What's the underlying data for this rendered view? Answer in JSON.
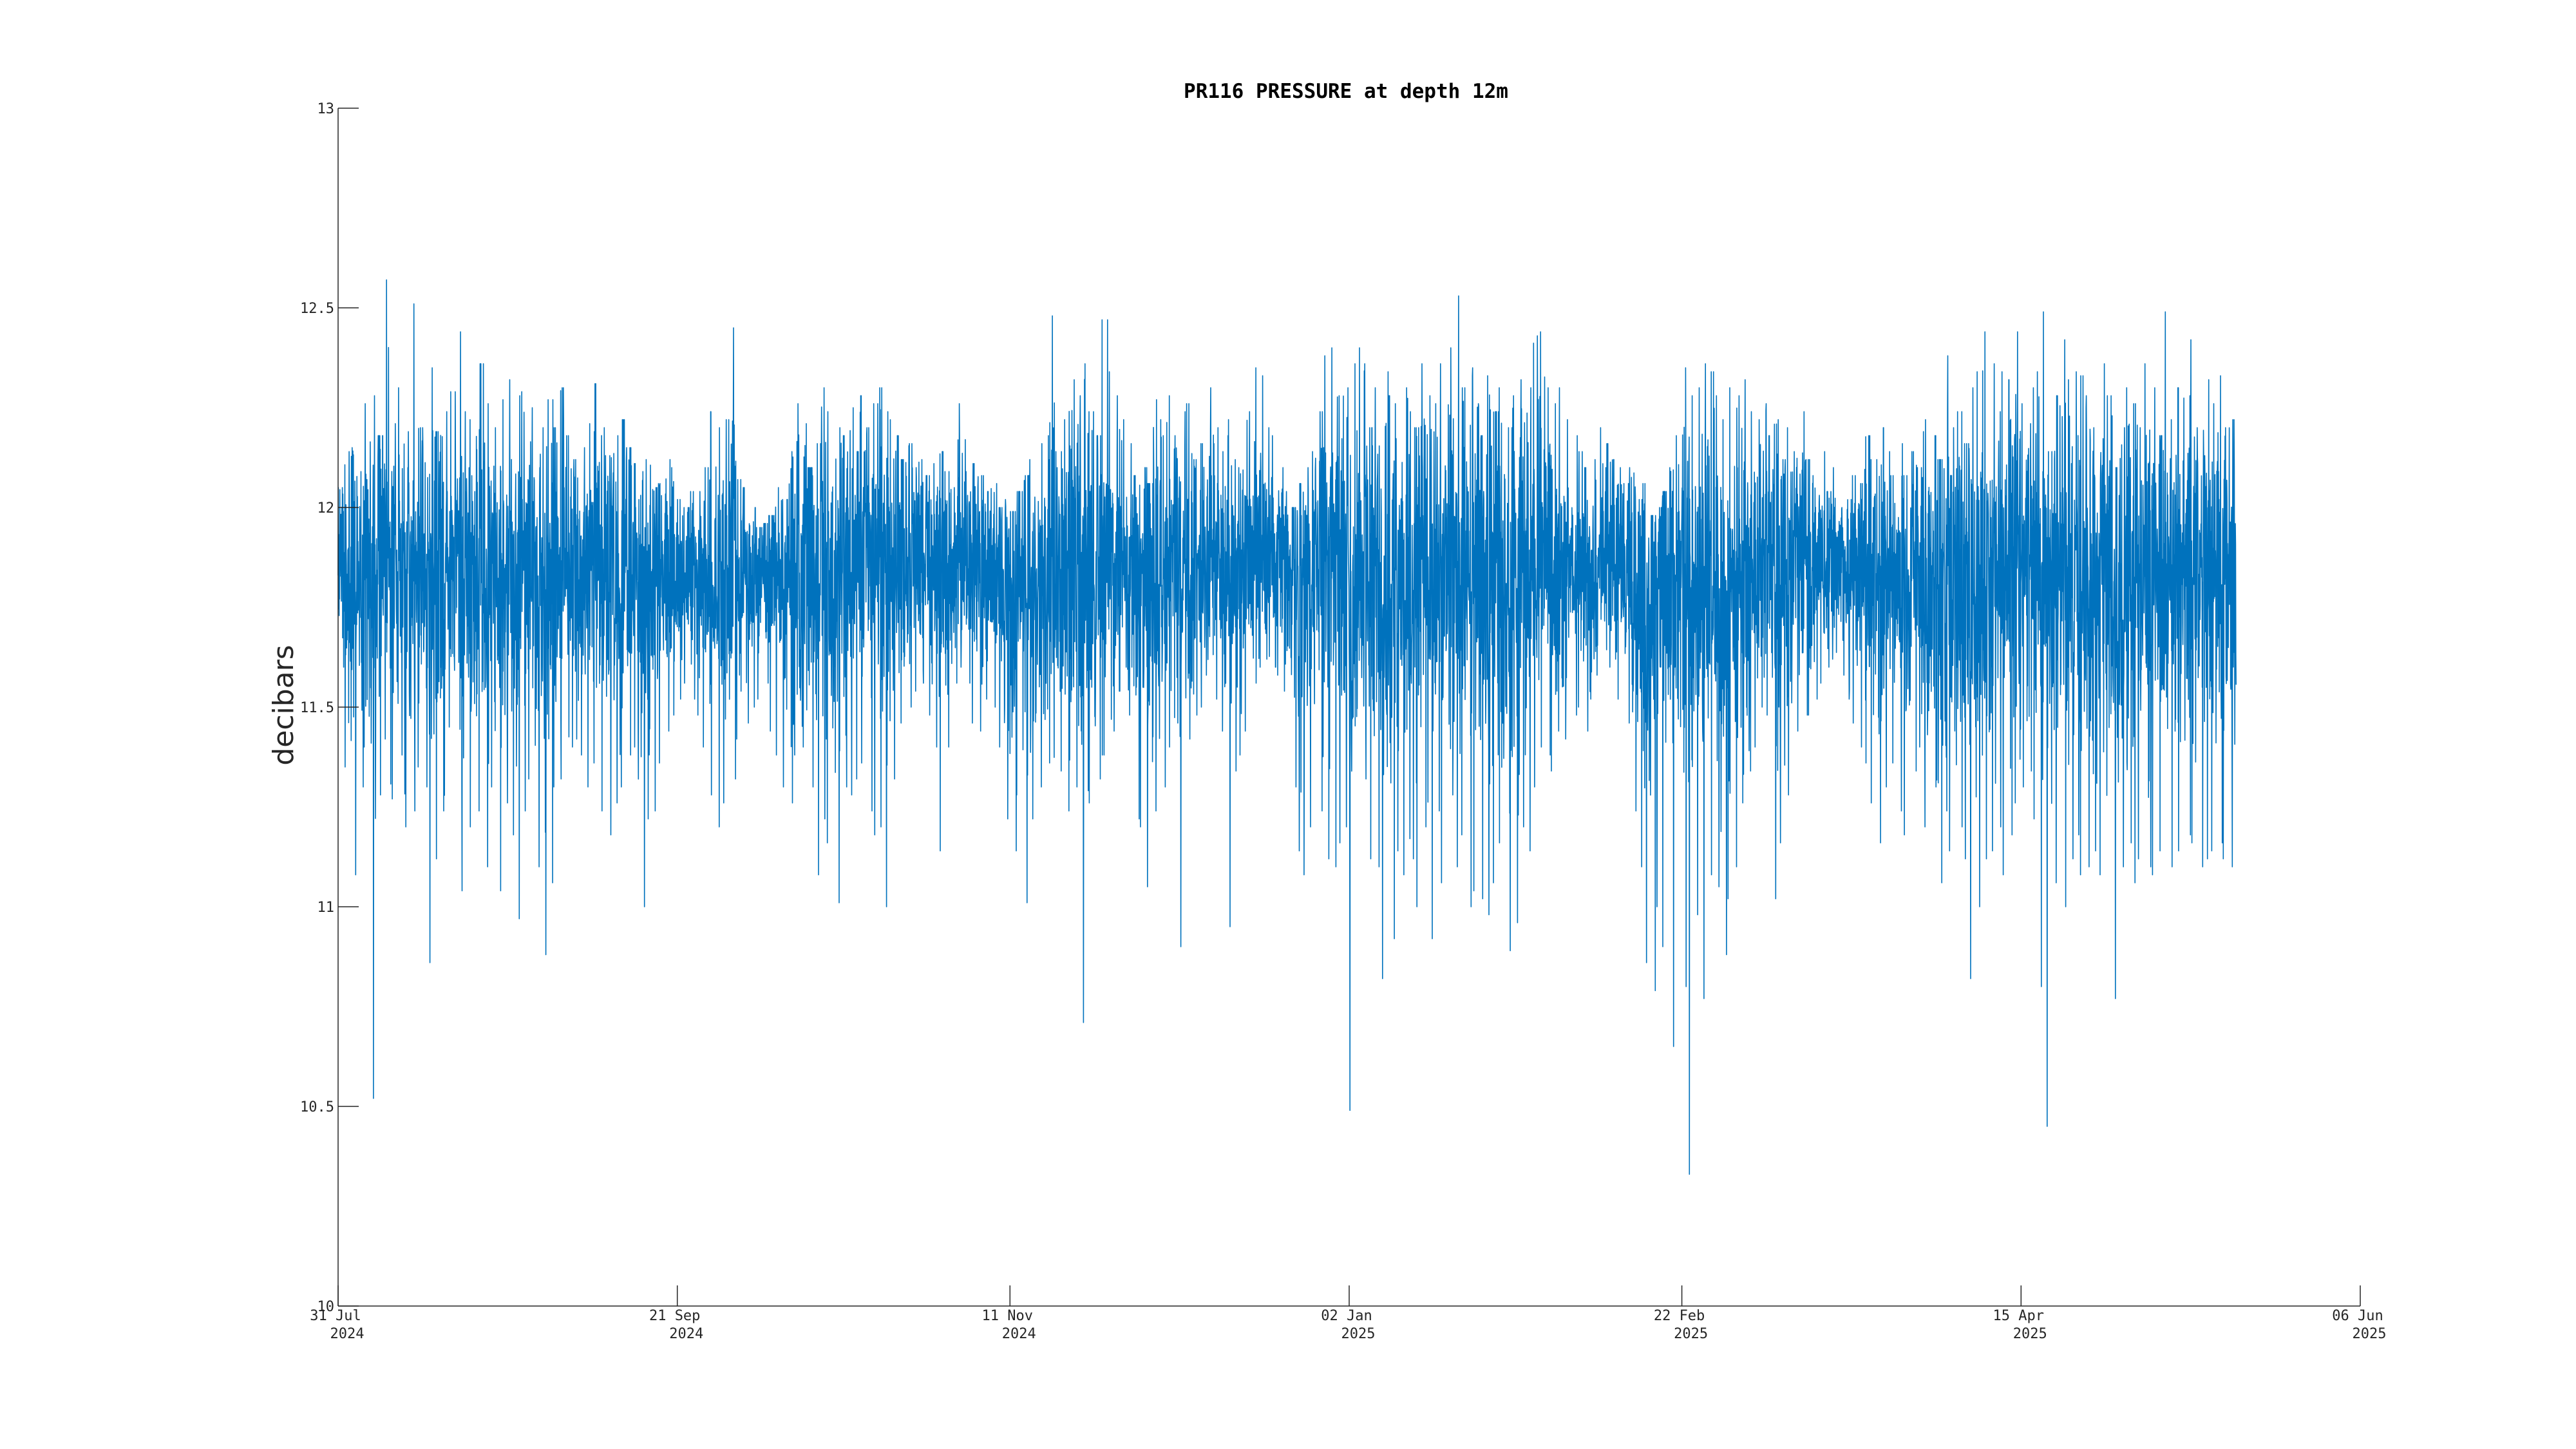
{
  "chart_data": {
    "type": "line",
    "title": "PR116 PRESSURE at depth 12m",
    "ylabel": "decibars",
    "xlabel": "",
    "xlim": [
      "2024-07-31",
      "2025-06-06"
    ],
    "ylim": [
      10,
      13
    ],
    "y_ticks": [
      10,
      10.5,
      11,
      11.5,
      12,
      12.5,
      13
    ],
    "y_tick_labels": [
      "10",
      "10.5",
      "11",
      "11.5",
      "12",
      "12.5",
      "13"
    ],
    "x_ticks": [
      "2024-07-31",
      "2024-09-21",
      "2024-11-11",
      "2025-01-02",
      "2025-02-22",
      "2025-04-15",
      "2025-06-06"
    ],
    "x_tick_labels": [
      {
        "day": "31 Jul",
        "year": "2024"
      },
      {
        "day": "21 Sep",
        "year": "2024"
      },
      {
        "day": "11 Nov",
        "year": "2024"
      },
      {
        "day": "02 Jan",
        "year": "2025"
      },
      {
        "day": "22 Feb",
        "year": "2025"
      },
      {
        "day": "15 Apr",
        "year": "2025"
      },
      {
        "day": "06 Jun",
        "year": "2025"
      }
    ],
    "grid": false,
    "series": [
      {
        "color": "#0072bd",
        "x": [
          "2024-07-31",
          "2024-08-01",
          "2024-08-02",
          "2024-08-03",
          "2024-08-04",
          "2024-08-05",
          "2024-08-06",
          "2024-08-07",
          "2024-08-08",
          "2024-08-09",
          "2024-08-10",
          "2024-08-11",
          "2024-08-12",
          "2024-08-13",
          "2024-08-14",
          "2024-08-15",
          "2024-08-16",
          "2024-08-17",
          "2024-08-18",
          "2024-08-19",
          "2024-08-20",
          "2024-08-21",
          "2024-08-22",
          "2024-08-23",
          "2024-08-24",
          "2024-08-25",
          "2024-08-26",
          "2024-08-27",
          "2024-08-28",
          "2024-08-29",
          "2024-08-30",
          "2024-08-31",
          "2024-09-01",
          "2024-09-02",
          "2024-09-03",
          "2024-09-04",
          "2024-09-05",
          "2024-09-06",
          "2024-09-07",
          "2024-09-08",
          "2024-09-09",
          "2024-09-10",
          "2024-09-11",
          "2024-09-12",
          "2024-09-13",
          "2024-09-14",
          "2024-09-15",
          "2024-09-16",
          "2024-09-17",
          "2024-09-18",
          "2024-09-19",
          "2024-09-20",
          "2024-09-21",
          "2024-09-22",
          "2024-09-23",
          "2024-09-24",
          "2024-09-25",
          "2024-09-26",
          "2024-09-27",
          "2024-09-28",
          "2024-09-29",
          "2024-09-30",
          "2024-10-01",
          "2024-10-02",
          "2024-10-03",
          "2024-10-04",
          "2024-10-05",
          "2024-10-06",
          "2024-10-07",
          "2024-10-08",
          "2024-10-09",
          "2024-10-10",
          "2024-10-11",
          "2024-10-12",
          "2024-10-13",
          "2024-10-14",
          "2024-10-15",
          "2024-10-16",
          "2024-10-17",
          "2024-10-18",
          "2024-10-19",
          "2024-10-20",
          "2024-10-21",
          "2024-10-22",
          "2024-10-23",
          "2024-10-24",
          "2024-10-25",
          "2024-10-26",
          "2024-10-27",
          "2024-10-28",
          "2024-10-29",
          "2024-10-30",
          "2024-10-31",
          "2024-11-01",
          "2024-11-02",
          "2024-11-03",
          "2024-11-04",
          "2024-11-05",
          "2024-11-06",
          "2024-11-07",
          "2024-11-08",
          "2024-11-09",
          "2024-11-10",
          "2024-11-11",
          "2024-11-12",
          "2024-11-13",
          "2024-11-14",
          "2024-11-15",
          "2024-11-16",
          "2024-11-17",
          "2024-11-18",
          "2024-11-19",
          "2024-11-20",
          "2024-11-21",
          "2024-11-22",
          "2024-11-23",
          "2024-11-24",
          "2024-11-25",
          "2024-11-26",
          "2024-11-27",
          "2024-11-28",
          "2024-11-29",
          "2024-11-30",
          "2024-12-01",
          "2024-12-02",
          "2024-12-03",
          "2024-12-04",
          "2024-12-05",
          "2024-12-06",
          "2024-12-07",
          "2024-12-08",
          "2024-12-09",
          "2024-12-10",
          "2024-12-11",
          "2024-12-12",
          "2024-12-13",
          "2024-12-14",
          "2024-12-15",
          "2024-12-16",
          "2024-12-17",
          "2024-12-18",
          "2024-12-19",
          "2024-12-20",
          "2024-12-21",
          "2024-12-22",
          "2024-12-23",
          "2024-12-24",
          "2024-12-25",
          "2024-12-26",
          "2024-12-27",
          "2024-12-28",
          "2024-12-29",
          "2024-12-30",
          "2024-12-31",
          "2025-01-01",
          "2025-01-02",
          "2025-01-03",
          "2025-01-04",
          "2025-01-05",
          "2025-01-06",
          "2025-01-07",
          "2025-01-08",
          "2025-01-09",
          "2025-01-10",
          "2025-01-11",
          "2025-01-12",
          "2025-01-13",
          "2025-01-14",
          "2025-01-15",
          "2025-01-16",
          "2025-01-17",
          "2025-01-18",
          "2025-01-19",
          "2025-01-20",
          "2025-01-21",
          "2025-01-22",
          "2025-01-23",
          "2025-01-24",
          "2025-01-25",
          "2025-01-26",
          "2025-01-27",
          "2025-01-28",
          "2025-01-29",
          "2025-01-30",
          "2025-01-31",
          "2025-02-01",
          "2025-02-02",
          "2025-02-03",
          "2025-02-04",
          "2025-02-05",
          "2025-02-06",
          "2025-02-07",
          "2025-02-08",
          "2025-02-09",
          "2025-02-10",
          "2025-02-11",
          "2025-02-12",
          "2025-02-13",
          "2025-02-14",
          "2025-02-15",
          "2025-02-16",
          "2025-02-17",
          "2025-02-18",
          "2025-02-19",
          "2025-02-20",
          "2025-02-21",
          "2025-02-22",
          "2025-02-23",
          "2025-02-24",
          "2025-02-25",
          "2025-02-26",
          "2025-02-27",
          "2025-02-28",
          "2025-03-01",
          "2025-03-02",
          "2025-03-03",
          "2025-03-04",
          "2025-03-05",
          "2025-03-06",
          "2025-03-07",
          "2025-03-08",
          "2025-03-09",
          "2025-03-10",
          "2025-03-11",
          "2025-03-12",
          "2025-03-13",
          "2025-03-14",
          "2025-03-15",
          "2025-03-16",
          "2025-03-17",
          "2025-03-18",
          "2025-03-19",
          "2025-03-20",
          "2025-03-21",
          "2025-03-22",
          "2025-03-23",
          "2025-03-24",
          "2025-03-25",
          "2025-03-26",
          "2025-03-27",
          "2025-03-28",
          "2025-03-29",
          "2025-03-30",
          "2025-03-31",
          "2025-04-01",
          "2025-04-02",
          "2025-04-03",
          "2025-04-04",
          "2025-04-05",
          "2025-04-06",
          "2025-04-07",
          "2025-04-08",
          "2025-04-09",
          "2025-04-10",
          "2025-04-11",
          "2025-04-12",
          "2025-04-13",
          "2025-04-14",
          "2025-04-15",
          "2025-04-16",
          "2025-04-17",
          "2025-04-18",
          "2025-04-19",
          "2025-04-20",
          "2025-04-21",
          "2025-04-22",
          "2025-04-23",
          "2025-04-24",
          "2025-04-25",
          "2025-04-26",
          "2025-04-27",
          "2025-04-28",
          "2025-04-29",
          "2025-04-30",
          "2025-05-01",
          "2025-05-02",
          "2025-05-03",
          "2025-05-04",
          "2025-05-05",
          "2025-05-06",
          "2025-05-07",
          "2025-05-08",
          "2025-05-09",
          "2025-05-10",
          "2025-05-11",
          "2025-05-12",
          "2025-05-13",
          "2025-05-14",
          "2025-05-15",
          "2025-05-16",
          "2025-05-17",
          "2025-05-18",
          "2025-05-19",
          "2025-05-20",
          "2025-05-21",
          "2025-05-22",
          "2025-05-23",
          "2025-05-24",
          "2025-05-25",
          "2025-05-26",
          "2025-05-27",
          "2025-05-28",
          "2025-05-29",
          "2025-05-30",
          "2025-05-31",
          "2025-06-01",
          "2025-06-02",
          "2025-06-03",
          "2025-06-04",
          "2025-06-05",
          "2025-06-06"
        ],
        "y_max": [
          12.05,
          12.14,
          12.15,
          12.09,
          12.26,
          12.28,
          12.18,
          12.57,
          12.21,
          12.3,
          12.19,
          12.51,
          12.2,
          12.15,
          12.35,
          12.19,
          12.24,
          12.29,
          12.44,
          12.24,
          12.22,
          12.36,
          12.36,
          12.26,
          12.2,
          12.27,
          12.32,
          12.28,
          12.29,
          12.25,
          12.1,
          12.2,
          12.27,
          12.2,
          12.3,
          12.18,
          12.12,
          12.15,
          12.21,
          12.31,
          12.2,
          12.13,
          12.18,
          12.22,
          12.15,
          12.11,
          12.09,
          12.12,
          12.05,
          12.06,
          12.12,
          12.1,
          12.02,
          12.0,
          12.04,
          12.04,
          12.1,
          12.24,
          12.2,
          12.22,
          12.45,
          12.07,
          12.05,
          12.0,
          11.95,
          11.96,
          11.98,
          12.05,
          12.02,
          12.14,
          12.26,
          12.21,
          12.1,
          12.16,
          12.3,
          12.24,
          12.2,
          12.18,
          12.25,
          12.14,
          12.28,
          12.2,
          12.26,
          12.3,
          12.24,
          12.18,
          12.12,
          12.16,
          12.1,
          12.12,
          12.08,
          12.11,
          12.14,
          12.09,
          12.05,
          12.26,
          12.17,
          12.11,
          12.08,
          12.04,
          12.06,
          12.0,
          12.02,
          11.99,
          12.04,
          12.08,
          12.12,
          12.16,
          12.18,
          12.48,
          12.14,
          12.22,
          12.32,
          12.28,
          12.36,
          12.24,
          12.18,
          12.47,
          12.34,
          12.28,
          12.22,
          12.16,
          12.08,
          12.1,
          12.06,
          12.27,
          12.22,
          12.28,
          12.18,
          12.24,
          12.26,
          12.12,
          12.16,
          12.3,
          12.2,
          12.14,
          12.22,
          12.12,
          12.1,
          12.24,
          12.35,
          12.33,
          12.2,
          12.18,
          12.1,
          12.04,
          12.0,
          12.06,
          12.1,
          12.14,
          12.24,
          12.38,
          12.4,
          12.28,
          12.3,
          12.36,
          12.4,
          12.36,
          12.2,
          12.3,
          12.34,
          12.28,
          12.26,
          12.3,
          12.24,
          12.2,
          12.36,
          12.28,
          12.26,
          12.36,
          12.4,
          12.53,
          12.3,
          12.35,
          12.26,
          12.18,
          12.33,
          12.24,
          12.3,
          12.2,
          12.28,
          12.32,
          12.3,
          12.43,
          12.44,
          12.3,
          12.26,
          12.3,
          12.22,
          12.18,
          12.14,
          12.1,
          12.12,
          12.2,
          12.16,
          12.12,
          12.1,
          12.06,
          12.1,
          12.02,
          12.06,
          11.98,
          12.0,
          12.04,
          12.1,
          12.18,
          12.35,
          12.28,
          12.3,
          12.36,
          12.34,
          12.28,
          12.22,
          12.3,
          12.28,
          12.32,
          12.24,
          12.22,
          12.26,
          12.18,
          12.22,
          12.12,
          12.2,
          12.14,
          12.24,
          12.12,
          12.08,
          12.14,
          12.04,
          12.1,
          12.0,
          12.02,
          12.08,
          12.06,
          12.18,
          12.12,
          12.2,
          12.14,
          12.08,
          12.16,
          12.08,
          12.14,
          12.1,
          12.22,
          12.18,
          12.12,
          12.38,
          12.2,
          12.24,
          12.16,
          12.3,
          12.34,
          12.44,
          12.36,
          12.24,
          12.34,
          12.32,
          12.44,
          12.26,
          12.3,
          12.34,
          12.49,
          12.14,
          12.28,
          12.42,
          12.32,
          12.34,
          12.33,
          12.28,
          12.2,
          12.36,
          12.28,
          12.1,
          12.2,
          12.3,
          12.26,
          12.2,
          12.36,
          12.3,
          12.18,
          12.49,
          12.22,
          12.3,
          12.28,
          12.42,
          12.2,
          12.32,
          12.26,
          12.33,
          12.2,
          12.22
        ],
        "y_min": [
          11.6,
          11.35,
          11.08,
          11.3,
          11.4,
          10.52,
          11.28,
          11.42,
          11.27,
          11.38,
          11.2,
          11.24,
          11.35,
          11.3,
          10.86,
          11.12,
          11.24,
          11.45,
          11.3,
          11.04,
          11.2,
          11.24,
          11.1,
          11.3,
          11.04,
          11.26,
          11.18,
          10.97,
          11.24,
          11.32,
          11.1,
          10.88,
          11.06,
          11.3,
          11.32,
          11.4,
          11.42,
          11.38,
          11.3,
          11.36,
          11.24,
          11.18,
          11.26,
          11.3,
          11.38,
          11.4,
          11.0,
          11.22,
          11.24,
          11.36,
          11.44,
          11.48,
          11.52,
          11.56,
          11.52,
          11.48,
          11.4,
          11.28,
          11.2,
          11.26,
          11.32,
          11.42,
          11.46,
          11.5,
          11.52,
          11.56,
          11.44,
          11.38,
          11.3,
          11.26,
          11.38,
          11.4,
          11.3,
          11.08,
          11.22,
          11.16,
          11.01,
          11.3,
          11.28,
          11.32,
          11.36,
          11.24,
          11.18,
          11.2,
          11.0,
          11.32,
          11.46,
          11.5,
          11.54,
          11.56,
          11.48,
          11.4,
          11.14,
          11.4,
          11.56,
          11.6,
          11.56,
          11.46,
          11.44,
          11.52,
          11.5,
          11.4,
          11.22,
          11.14,
          11.28,
          11.01,
          11.22,
          11.3,
          11.18,
          11.36,
          11.34,
          11.38,
          11.24,
          11.3,
          10.71,
          11.26,
          11.32,
          11.38,
          11.44,
          11.54,
          11.6,
          11.48,
          11.22,
          11.2,
          11.05,
          11.24,
          11.3,
          11.4,
          11.46,
          10.9,
          11.42,
          11.48,
          11.5,
          11.58,
          11.52,
          11.44,
          10.95,
          11.34,
          11.38,
          11.44,
          11.56,
          11.6,
          11.62,
          11.6,
          11.58,
          11.54,
          11.3,
          11.14,
          11.08,
          11.2,
          11.24,
          11.12,
          11.1,
          11.16,
          11.2,
          10.49,
          11.26,
          11.32,
          11.12,
          11.1,
          10.82,
          10.92,
          11.14,
          11.08,
          11.12,
          11.0,
          11.2,
          10.92,
          11.24,
          11.06,
          11.28,
          11.1,
          11.18,
          11.0,
          11.04,
          11.02,
          10.98,
          11.06,
          11.16,
          10.89,
          10.96,
          11.2,
          11.14,
          11.3,
          11.4,
          11.38,
          11.34,
          11.44,
          11.42,
          11.48,
          11.5,
          11.44,
          11.52,
          11.58,
          11.6,
          11.62,
          11.52,
          11.46,
          11.24,
          11.1,
          10.86,
          10.79,
          11.0,
          10.9,
          10.65,
          11.08,
          10.8,
          10.33,
          10.98,
          10.77,
          11.08,
          11.05,
          10.88,
          11.02,
          11.1,
          11.26,
          11.34,
          11.4,
          11.5,
          11.48,
          11.02,
          11.16,
          11.28,
          11.44,
          11.5,
          11.48,
          11.52,
          11.56,
          11.6,
          11.62,
          11.58,
          11.52,
          11.46,
          11.4,
          11.36,
          11.26,
          11.16,
          11.3,
          11.36,
          11.24,
          11.18,
          11.34,
          11.4,
          11.2,
          11.3,
          11.06,
          11.24,
          11.14,
          11.2,
          11.12,
          10.82,
          11.0,
          11.12,
          11.14,
          11.2,
          11.08,
          11.18,
          11.26,
          11.3,
          11.34,
          11.22,
          10.8,
          10.45,
          11.06,
          11.0,
          11.12,
          11.18,
          11.08,
          11.1,
          11.14,
          11.08,
          11.12,
          10.77,
          11.1,
          11.16,
          11.06,
          11.12,
          11.1,
          11.08,
          11.14,
          11.12,
          11.1,
          11.14,
          11.18,
          11.16,
          11.1,
          11.12,
          11.14,
          11.16,
          11.12,
          11.1
        ]
      }
    ]
  }
}
